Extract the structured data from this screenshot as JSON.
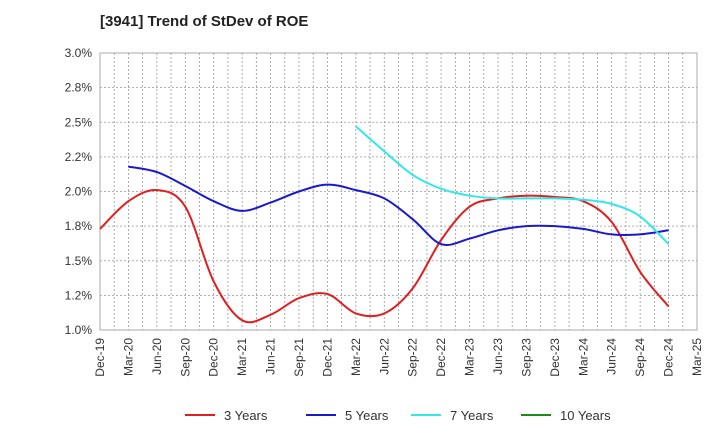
{
  "chart_data": {
    "type": "line",
    "title": "[3941]  Trend of StDev of ROE",
    "xlabel": "",
    "ylabel": "",
    "ylim": [
      1.0,
      3.0
    ],
    "y_ticks": [
      "1.0%",
      "1.2%",
      "1.5%",
      "1.8%",
      "2.0%",
      "2.2%",
      "2.5%",
      "2.8%",
      "3.0%"
    ],
    "x": [
      "Dec-19",
      "Mar-20",
      "Jun-20",
      "Sep-20",
      "Dec-20",
      "Mar-21",
      "Jun-21",
      "Sep-21",
      "Dec-21",
      "Mar-22",
      "Jun-22",
      "Sep-22",
      "Dec-22",
      "Mar-23",
      "Jun-23",
      "Sep-23",
      "Dec-23",
      "Mar-24",
      "Jun-24",
      "Sep-24",
      "Dec-24",
      "Mar-25"
    ],
    "grid": true,
    "legend_position": "bottom",
    "series": [
      {
        "name": "3 Years",
        "color": "#e02020",
        "values": [
          1.73,
          1.93,
          2.01,
          1.89,
          1.35,
          1.07,
          1.11,
          1.23,
          1.26,
          1.12,
          1.12,
          1.3,
          1.65,
          1.89,
          1.95,
          1.97,
          1.96,
          1.93,
          1.78,
          1.42,
          1.17,
          null
        ]
      },
      {
        "name": "5 Years",
        "color": "#1a1acc",
        "values": [
          null,
          2.18,
          2.14,
          2.04,
          1.93,
          1.86,
          1.92,
          2.0,
          2.05,
          2.01,
          1.95,
          1.8,
          1.62,
          1.66,
          1.72,
          1.75,
          1.75,
          1.73,
          1.69,
          1.69,
          1.72,
          null
        ]
      },
      {
        "name": "7 Years",
        "color": "#33e8e8",
        "values": [
          null,
          null,
          null,
          null,
          null,
          null,
          null,
          null,
          null,
          2.47,
          2.29,
          2.12,
          2.02,
          1.97,
          1.95,
          1.95,
          1.95,
          1.94,
          1.91,
          1.82,
          1.62,
          null
        ]
      },
      {
        "name": "10 Years",
        "color": "#1a8a1a",
        "values": [
          null,
          null,
          null,
          null,
          null,
          null,
          null,
          null,
          null,
          null,
          null,
          null,
          null,
          null,
          null,
          null,
          null,
          null,
          null,
          null,
          null,
          null
        ]
      }
    ]
  }
}
